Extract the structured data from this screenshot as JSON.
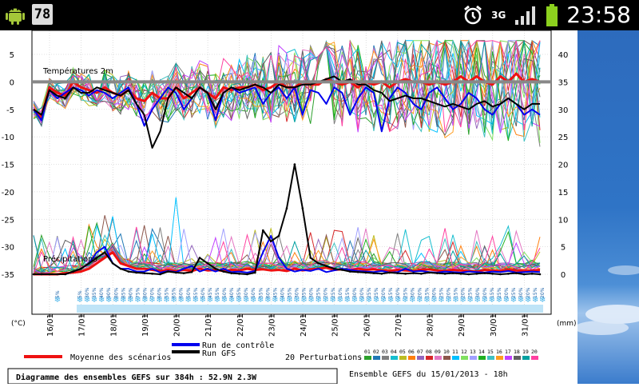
{
  "status_bar": {
    "notification_badge": "78",
    "network": "3G",
    "time": "23:58",
    "icons": [
      "android-icon",
      "notification-badge-icon",
      "alarm-icon",
      "network-3g-icon",
      "signal-icon",
      "battery-icon"
    ]
  },
  "chart_data": {
    "type": "line",
    "title": "Diagramme des ensembles GEFS sur 384h : 52.9N 2.3W",
    "run_info": "Ensemble GEFS du 15/01/2013 - 18h",
    "label_temperature": "Températures 2m",
    "label_precipitation": "Précipitations",
    "left_unit": "(°C)",
    "right_unit": "(mm)",
    "left_ticks": [
      5,
      0,
      -5,
      -10,
      -15,
      -20,
      -25,
      -30,
      -35
    ],
    "right_ticks": [
      40,
      35,
      30,
      25,
      20,
      15,
      10,
      5,
      0
    ],
    "ylim_left": [
      -35,
      5
    ],
    "ylim_right": [
      0,
      40
    ],
    "dates": [
      "16/01",
      "17/01",
      "18/01",
      "19/01",
      "20/01",
      "21/01",
      "22/01",
      "23/01",
      "24/01",
      "25/01",
      "26/01",
      "27/01",
      "28/01",
      "29/01",
      "30/01",
      "31/01"
    ],
    "snow_probabilities": [
      "5%",
      "5%",
      "30%",
      "35%",
      "40%",
      "90%",
      "80%",
      "85%",
      "90%",
      "75%",
      "80%",
      "70%",
      "60%",
      "55%",
      "65%",
      "60%",
      "50%",
      "55%",
      "50%",
      "45%",
      "55%",
      "50%",
      "40%",
      "35%",
      "30%",
      "50%",
      "55%",
      "60%",
      "45%",
      "40%",
      "35%",
      "30%",
      "35%",
      "30%",
      "25%",
      "20%",
      "25%",
      "10%",
      "15%",
      "30%",
      "20%",
      "25%",
      "25%",
      "20%",
      "15%",
      "20%",
      "25%",
      "30%",
      "20%",
      "15%",
      "30%",
      "25%",
      "20%",
      "15%",
      "20%",
      "25%",
      "30%",
      "20%",
      "15%",
      "25%",
      "20%",
      "25%",
      "30%",
      "20%",
      "15%",
      "20%"
    ],
    "legend": {
      "mean": "Moyenne des scénarios",
      "control": "Run de contrôle",
      "gfs": "Run GFS",
      "perturbations": "20 Perturbations",
      "member_numbers": [
        "01",
        "02",
        "03",
        "04",
        "05",
        "06",
        "07",
        "08",
        "09",
        "10",
        "11",
        "12",
        "13",
        "14",
        "15",
        "16",
        "17",
        "18",
        "19",
        "20"
      ]
    },
    "member_colors": [
      "#2ca02c",
      "#1f77b4",
      "#7f7f7f",
      "#17becf",
      "#bcbd22",
      "#ff7f0e",
      "#9467bd",
      "#d62728",
      "#e377c2",
      "#8c564b",
      "#00c0ff",
      "#80e060",
      "#a0a0ff",
      "#20b020",
      "#40c0c0",
      "#ff9c20",
      "#c040ff",
      "#606060",
      "#00a0a0",
      "#ff40a0"
    ],
    "series": [
      {
        "name": "Moyenne des scénarios",
        "color": "#ee1111",
        "temp": [
          -5,
          -6.5,
          -1,
          -2,
          -2.5,
          0,
          -1,
          -1.5,
          -2,
          -1,
          -2,
          -2.5,
          -1.5,
          -3,
          -3.5,
          -2,
          -3,
          -3,
          -1,
          -3,
          -2,
          -1,
          -2,
          -3,
          -1,
          -1.5,
          -1,
          -1,
          -0.5,
          -1.5,
          -1,
          0,
          -1,
          -1,
          0,
          -0.5,
          -0.5,
          0.5,
          0,
          -0.5,
          0,
          -1,
          0,
          -0.5,
          0,
          -1,
          0,
          0.5,
          0,
          0,
          -0.5,
          0,
          -0.5,
          0,
          1,
          0,
          1,
          0,
          -0.5,
          1,
          0,
          1.5,
          0,
          0.5,
          0
        ],
        "precip": [
          0,
          0,
          0,
          0,
          0.2,
          0.3,
          0.5,
          1,
          2,
          3,
          4,
          2,
          1.5,
          1,
          1,
          0.8,
          0.6,
          0.8,
          0.6,
          0.8,
          0.6,
          1,
          0.7,
          0.8,
          0.6,
          0.8,
          0.7,
          1,
          0.8,
          0.9,
          0.7,
          0.8,
          0.6,
          1,
          0.7,
          0.9,
          1,
          1.2,
          0.8,
          0.9,
          0.7,
          1,
          0.8,
          0.9,
          0.7,
          0.6,
          0.8,
          0.7,
          0.6,
          0.8,
          0.9,
          0.7,
          0.6,
          0.8,
          0.7,
          0.6,
          0.5,
          0.8,
          0.7,
          0.6,
          0.8,
          0.7,
          0.6,
          0.7,
          0.8
        ]
      },
      {
        "name": "Run de contrôle",
        "color": "#0000ee",
        "temp": [
          -5,
          -7,
          -1.5,
          -3,
          -2,
          -1,
          -1.5,
          -2.5,
          -1.5,
          -2,
          -3,
          -2,
          -1,
          -4,
          -8,
          -5,
          -3,
          -1,
          -2,
          -5,
          -3,
          -1,
          -2,
          -7,
          -2,
          -1,
          -2,
          -1.5,
          -1,
          -4,
          -2,
          -1,
          -3,
          -1,
          -6,
          -1.5,
          -2,
          -4,
          -1,
          -2,
          -6,
          -3,
          -1,
          -2,
          -9,
          -3,
          -1,
          -2,
          -4,
          -5,
          -2,
          -1,
          -3,
          -5,
          -4,
          -2,
          -3,
          -5,
          -6,
          -4,
          -3,
          -4,
          -6,
          -5,
          -6
        ],
        "precip": [
          0,
          0,
          0,
          0,
          0,
          0.5,
          1,
          2,
          4,
          5,
          2,
          1,
          1,
          0.5,
          0.5,
          1,
          0.3,
          0.6,
          0.4,
          1,
          1.5,
          0.5,
          1,
          0.5,
          1,
          0.4,
          0.5,
          0.3,
          0.6,
          4,
          7,
          3,
          1,
          0.5,
          0.8,
          0.6,
          1,
          0.4,
          0.7,
          1,
          0.8,
          0.6,
          0.5,
          0.4,
          0.6,
          0.3,
          0.4,
          1,
          0.5,
          0.6,
          0.4,
          0.3,
          0.5,
          0.4,
          0.3,
          0.5,
          0.4,
          0.3,
          0.5,
          0.4,
          0.6,
          0.3,
          0.4,
          0.5,
          0.4
        ]
      },
      {
        "name": "Run GFS",
        "color": "#000000",
        "temp": [
          -5,
          -6,
          -1.5,
          -2.5,
          -3,
          -1,
          -2,
          -2,
          -1,
          -1.5,
          -2,
          -2.5,
          -1.5,
          -4,
          -6,
          -12,
          -9,
          -3,
          -1,
          -2,
          -3,
          -1,
          -2,
          -5,
          -2,
          -1,
          -1.5,
          -1,
          -0.5,
          -1,
          -2,
          -0.5,
          -1,
          -1,
          -0.5,
          -0.5,
          0,
          0.5,
          1,
          0,
          0.5,
          -0.5,
          -0.5,
          -1.5,
          -2,
          -3.5,
          -3,
          -2.5,
          -3,
          -3,
          -3.5,
          -4,
          -4.5,
          -4,
          -4.5,
          -5,
          -4,
          -3.5,
          -4.5,
          -4,
          -3,
          -4,
          -5,
          -4,
          -4
        ]
      },
      {
        "name": "Run GFS precip",
        "color": "#000000",
        "precip": [
          0,
          0,
          0,
          0,
          0,
          0.5,
          1,
          2,
          3,
          4,
          2,
          1,
          0.5,
          0.3,
          0.2,
          0.1,
          0,
          0.5,
          0.3,
          0.2,
          0.4,
          3,
          2,
          1,
          0.5,
          0.2,
          0.1,
          0,
          0.3,
          8,
          6,
          7,
          12,
          20,
          12,
          3,
          2,
          1.5,
          1,
          0.8,
          0.5,
          0.4,
          0.3,
          0.2,
          0.1,
          0.3,
          0.2,
          0.1,
          0.2,
          0.1,
          0.3,
          0.2,
          0.1,
          0.2,
          0.1,
          0,
          0.1,
          0.2,
          0.1,
          0,
          0.1,
          0.2,
          0,
          0.1,
          0
        ]
      }
    ]
  }
}
